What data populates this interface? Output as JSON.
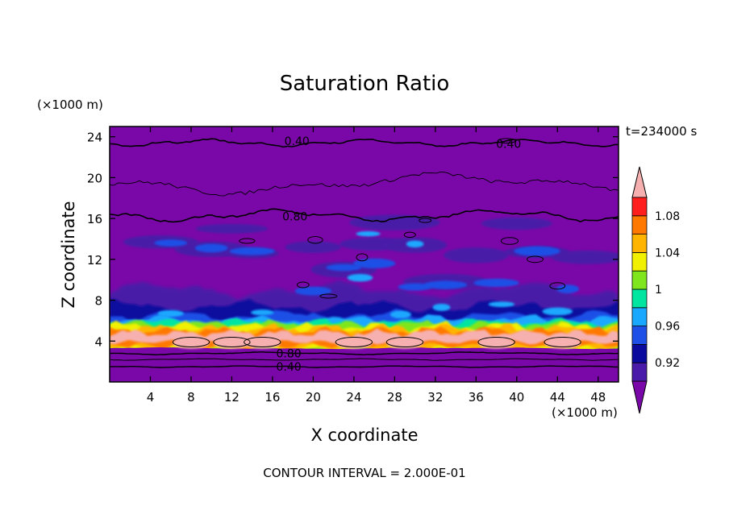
{
  "chart_data": {
    "type": "heatmap",
    "title": "Saturation Ratio",
    "xlabel": "X coordinate",
    "ylabel": "Z coordinate",
    "x_unit": "(×1000 m)",
    "y_unit": "(×1000 m)",
    "time_label": "t=234000 s",
    "footer": "CONTOUR INTERVAL = 2.000E-01",
    "xlim": [
      0,
      50
    ],
    "ylim": [
      0,
      25
    ],
    "x_ticks": [
      4,
      8,
      12,
      16,
      20,
      24,
      28,
      32,
      36,
      40,
      44,
      48
    ],
    "y_ticks": [
      4,
      8,
      12,
      16,
      20,
      24
    ],
    "colorbar": {
      "labels": [
        "1.08",
        "1.04",
        "1",
        "0.96",
        "0.92"
      ],
      "label_values": [
        1.08,
        1.04,
        1.0,
        0.96,
        0.92
      ],
      "levels": [
        0.9,
        0.92,
        0.94,
        0.96,
        0.98,
        1.0,
        1.02,
        1.04,
        1.06,
        1.08,
        1.1
      ],
      "colors": [
        "#4a1aa8",
        "#0a0a9e",
        "#1e4fe6",
        "#1aa8ff",
        "#00e6a0",
        "#7fe61e",
        "#f0f000",
        "#ffb400",
        "#ff7800",
        "#ff1e1e"
      ],
      "under_color": "#7a08a8",
      "over_color": "#f7b0b0"
    },
    "contour_labels": [
      {
        "text": "0.40",
        "x": 18.4,
        "z": 23.6
      },
      {
        "text": "0.40",
        "x": 39.2,
        "z": 23.3
      },
      {
        "text": "0.80",
        "x": 18.2,
        "z": 16.2
      },
      {
        "text": "0.80",
        "x": 17.6,
        "z": 2.8
      },
      {
        "text": "0.40",
        "x": 17.6,
        "z": 1.5
      }
    ]
  }
}
